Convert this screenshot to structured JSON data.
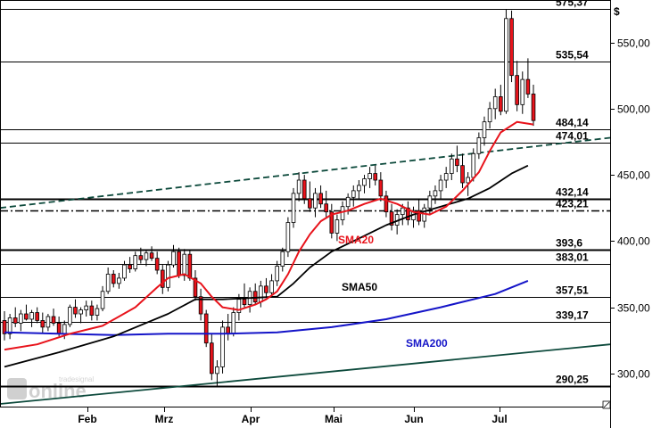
{
  "chart_data": {
    "type": "candlestick",
    "currency_label": "$",
    "ylim": [
      275,
      582
    ],
    "y_ticks": [
      "550,00",
      "500,00",
      "450,00",
      "400,00",
      "350,00",
      "300,00"
    ],
    "y_tick_values": [
      550,
      500,
      450,
      400,
      350,
      300
    ],
    "x_months": [
      "Feb",
      "Mrz",
      "Apr",
      "Mai",
      "Jun",
      "Jul"
    ],
    "levels": [
      {
        "label": "575,37",
        "value": 575.37,
        "style": "thin"
      },
      {
        "label": "535,54",
        "value": 535.54,
        "style": "thin"
      },
      {
        "label": "484,14",
        "value": 484.14,
        "style": "thin"
      },
      {
        "label": "474,01",
        "value": 474.01,
        "style": "thin"
      },
      {
        "label": "432,14",
        "value": 432.14,
        "style": "thick"
      },
      {
        "label": "423,21",
        "value": 423.21,
        "style": "dashdot"
      },
      {
        "label": "393,6",
        "value": 393.6,
        "style": "thick"
      },
      {
        "label": "383,01",
        "value": 383.01,
        "style": "thin"
      },
      {
        "label": "357,51",
        "value": 357.51,
        "style": "thin"
      },
      {
        "label": "339,17",
        "value": 339.17,
        "style": "thin"
      },
      {
        "label": "290,25",
        "value": 290.25,
        "style": "thick"
      }
    ],
    "series_labels": {
      "sma20": "SMA20",
      "sma50": "SMA50",
      "sma200": "SMA200"
    },
    "colors": {
      "sma20": "#e8131b",
      "sma50": "#000000",
      "sma200": "#1414c8",
      "trend": "#0d4a3c",
      "up": "#ffffff",
      "down": "#e8131b"
    },
    "watermark": "tradesignal online",
    "trend_lines": [
      {
        "name": "upper-channel",
        "style": "dashed",
        "y_start": 425,
        "y_end": 478
      },
      {
        "name": "lower-channel",
        "style": "solid",
        "y_start": 277,
        "y_end": 322
      }
    ],
    "candles": [
      [
        340,
        347,
        325,
        330
      ],
      [
        330,
        345,
        326,
        342
      ],
      [
        342,
        350,
        335,
        338
      ],
      [
        338,
        348,
        332,
        345
      ],
      [
        345,
        352,
        340,
        341
      ],
      [
        341,
        348,
        335,
        346
      ],
      [
        346,
        350,
        338,
        340
      ],
      [
        340,
        346,
        330,
        335
      ],
      [
        335,
        345,
        332,
        343
      ],
      [
        343,
        349,
        336,
        338
      ],
      [
        338,
        343,
        328,
        330
      ],
      [
        330,
        340,
        326,
        337
      ],
      [
        337,
        352,
        335,
        350
      ],
      [
        350,
        356,
        342,
        345
      ],
      [
        345,
        350,
        338,
        348
      ],
      [
        348,
        355,
        343,
        351
      ],
      [
        351,
        355,
        340,
        344
      ],
      [
        344,
        352,
        340,
        349
      ],
      [
        349,
        366,
        347,
        362
      ],
      [
        362,
        380,
        360,
        375
      ],
      [
        375,
        378,
        365,
        368
      ],
      [
        368,
        376,
        364,
        372
      ],
      [
        372,
        385,
        370,
        382
      ],
      [
        382,
        388,
        376,
        379
      ],
      [
        379,
        392,
        377,
        389
      ],
      [
        389,
        395,
        383,
        386
      ],
      [
        386,
        393,
        381,
        391
      ],
      [
        391,
        396,
        385,
        387
      ],
      [
        387,
        392,
        375,
        378
      ],
      [
        378,
        382,
        360,
        365
      ],
      [
        365,
        385,
        362,
        382
      ],
      [
        382,
        397,
        380,
        392
      ],
      [
        392,
        395,
        372,
        374
      ],
      [
        374,
        394,
        370,
        390
      ],
      [
        390,
        393,
        370,
        372
      ],
      [
        372,
        378,
        355,
        358
      ],
      [
        358,
        364,
        340,
        345
      ],
      [
        345,
        348,
        320,
        323
      ],
      [
        323,
        330,
        295,
        300
      ],
      [
        300,
        310,
        290,
        305
      ],
      [
        305,
        340,
        300,
        335
      ],
      [
        335,
        345,
        325,
        330
      ],
      [
        330,
        350,
        328,
        346
      ],
      [
        346,
        360,
        340,
        356
      ],
      [
        356,
        368,
        350,
        352
      ],
      [
        352,
        365,
        346,
        362
      ],
      [
        362,
        368,
        352,
        354
      ],
      [
        354,
        370,
        350,
        366
      ],
      [
        366,
        372,
        358,
        361
      ],
      [
        361,
        375,
        358,
        370
      ],
      [
        370,
        385,
        366,
        381
      ],
      [
        381,
        395,
        377,
        392
      ],
      [
        392,
        418,
        388,
        414
      ],
      [
        414,
        440,
        410,
        436
      ],
      [
        436,
        452,
        430,
        446
      ],
      [
        446,
        450,
        428,
        432
      ],
      [
        432,
        445,
        422,
        425
      ],
      [
        425,
        440,
        418,
        436
      ],
      [
        436,
        442,
        425,
        428
      ],
      [
        428,
        438,
        418,
        422
      ],
      [
        422,
        428,
        402,
        406
      ],
      [
        406,
        420,
        400,
        416
      ],
      [
        416,
        430,
        412,
        426
      ],
      [
        426,
        436,
        420,
        433
      ],
      [
        433,
        442,
        426,
        438
      ],
      [
        438,
        446,
        432,
        442
      ],
      [
        442,
        450,
        436,
        447
      ],
      [
        447,
        456,
        440,
        451
      ],
      [
        451,
        457,
        442,
        446
      ],
      [
        446,
        452,
        430,
        434
      ],
      [
        434,
        438,
        418,
        422
      ],
      [
        422,
        428,
        408,
        412
      ],
      [
        412,
        424,
        405,
        420
      ],
      [
        420,
        428,
        412,
        425
      ],
      [
        425,
        430,
        412,
        416
      ],
      [
        416,
        426,
        410,
        423
      ],
      [
        423,
        432,
        412,
        415
      ],
      [
        415,
        428,
        410,
        425
      ],
      [
        425,
        438,
        420,
        434
      ],
      [
        434,
        442,
        428,
        438
      ],
      [
        438,
        450,
        432,
        446
      ],
      [
        446,
        456,
        440,
        451
      ],
      [
        451,
        466,
        446,
        462
      ],
      [
        462,
        472,
        452,
        457
      ],
      [
        457,
        466,
        440,
        444
      ],
      [
        444,
        452,
        434,
        448
      ],
      [
        448,
        470,
        445,
        466
      ],
      [
        466,
        482,
        462,
        478
      ],
      [
        478,
        494,
        472,
        490
      ],
      [
        490,
        505,
        485,
        500
      ],
      [
        500,
        515,
        492,
        509
      ],
      [
        509,
        518,
        495,
        498
      ],
      [
        498,
        575,
        496,
        568
      ],
      [
        568,
        574,
        520,
        525
      ],
      [
        525,
        536,
        498,
        503
      ],
      [
        503,
        528,
        496,
        522
      ],
      [
        522,
        538,
        508,
        511
      ],
      [
        511,
        518,
        487,
        491
      ]
    ],
    "sma20": [
      [
        0,
        318
      ],
      [
        6,
        322
      ],
      [
        12,
        330
      ],
      [
        18,
        336
      ],
      [
        24,
        350
      ],
      [
        28,
        365
      ],
      [
        30,
        372
      ],
      [
        33,
        375
      ],
      [
        36,
        368
      ],
      [
        38,
        358
      ],
      [
        40,
        350
      ],
      [
        43,
        348
      ],
      [
        46,
        352
      ],
      [
        48,
        356
      ],
      [
        50,
        362
      ],
      [
        52,
        375
      ],
      [
        54,
        392
      ],
      [
        56,
        405
      ],
      [
        58,
        415
      ],
      [
        60,
        420
      ],
      [
        63,
        423
      ],
      [
        66,
        428
      ],
      [
        69,
        432
      ],
      [
        72,
        428
      ],
      [
        75,
        422
      ],
      [
        78,
        420
      ],
      [
        81,
        426
      ],
      [
        84,
        438
      ],
      [
        87,
        452
      ],
      [
        89,
        468
      ],
      [
        91,
        482
      ],
      [
        94,
        490
      ],
      [
        97,
        488
      ]
    ],
    "sma50": [
      [
        0,
        305
      ],
      [
        10,
        316
      ],
      [
        20,
        328
      ],
      [
        30,
        345
      ],
      [
        35,
        356
      ],
      [
        40,
        356
      ],
      [
        45,
        357
      ],
      [
        50,
        358
      ],
      [
        53,
        368
      ],
      [
        56,
        380
      ],
      [
        60,
        392
      ],
      [
        65,
        402
      ],
      [
        70,
        412
      ],
      [
        75,
        420
      ],
      [
        80,
        426
      ],
      [
        85,
        432
      ],
      [
        89,
        440
      ],
      [
        93,
        451
      ],
      [
        96,
        457
      ]
    ],
    "sma200": [
      [
        0,
        331
      ],
      [
        10,
        330
      ],
      [
        20,
        329
      ],
      [
        30,
        330
      ],
      [
        40,
        330
      ],
      [
        50,
        331
      ],
      [
        60,
        335
      ],
      [
        70,
        341
      ],
      [
        80,
        350
      ],
      [
        90,
        360
      ],
      [
        96,
        370
      ]
    ]
  }
}
